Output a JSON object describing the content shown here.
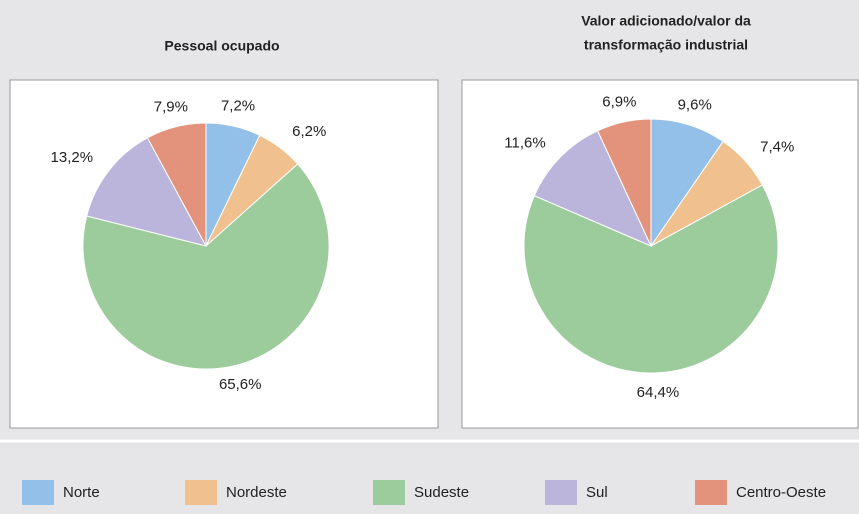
{
  "chart_data": [
    {
      "type": "pie",
      "title": "Pessoal ocupado",
      "categories": [
        "Norte",
        "Nordeste",
        "Sudeste",
        "Sul",
        "Centro-Oeste"
      ],
      "values": [
        7.2,
        6.2,
        65.6,
        13.2,
        7.9
      ],
      "value_labels": [
        "7,2%",
        "6,2%",
        "65,6%",
        "13,2%",
        "7,9%"
      ],
      "colors": [
        "#92c0e8",
        "#f0c08e",
        "#9ccb9c",
        "#bcb5db",
        "#e3937c"
      ]
    },
    {
      "type": "pie",
      "title": [
        "Valor adicionado/valor da",
        "transformação industrial"
      ],
      "categories": [
        "Norte",
        "Nordeste",
        "Sudeste",
        "Sul",
        "Centro-Oeste"
      ],
      "values": [
        9.6,
        7.4,
        64.4,
        11.6,
        6.9
      ],
      "value_labels": [
        "9,6%",
        "7,4%",
        "64,4%",
        "11,6%",
        "6,9%"
      ],
      "colors": [
        "#92c0e8",
        "#f0c08e",
        "#9ccb9c",
        "#bcb5db",
        "#e3937c"
      ]
    }
  ]
}
